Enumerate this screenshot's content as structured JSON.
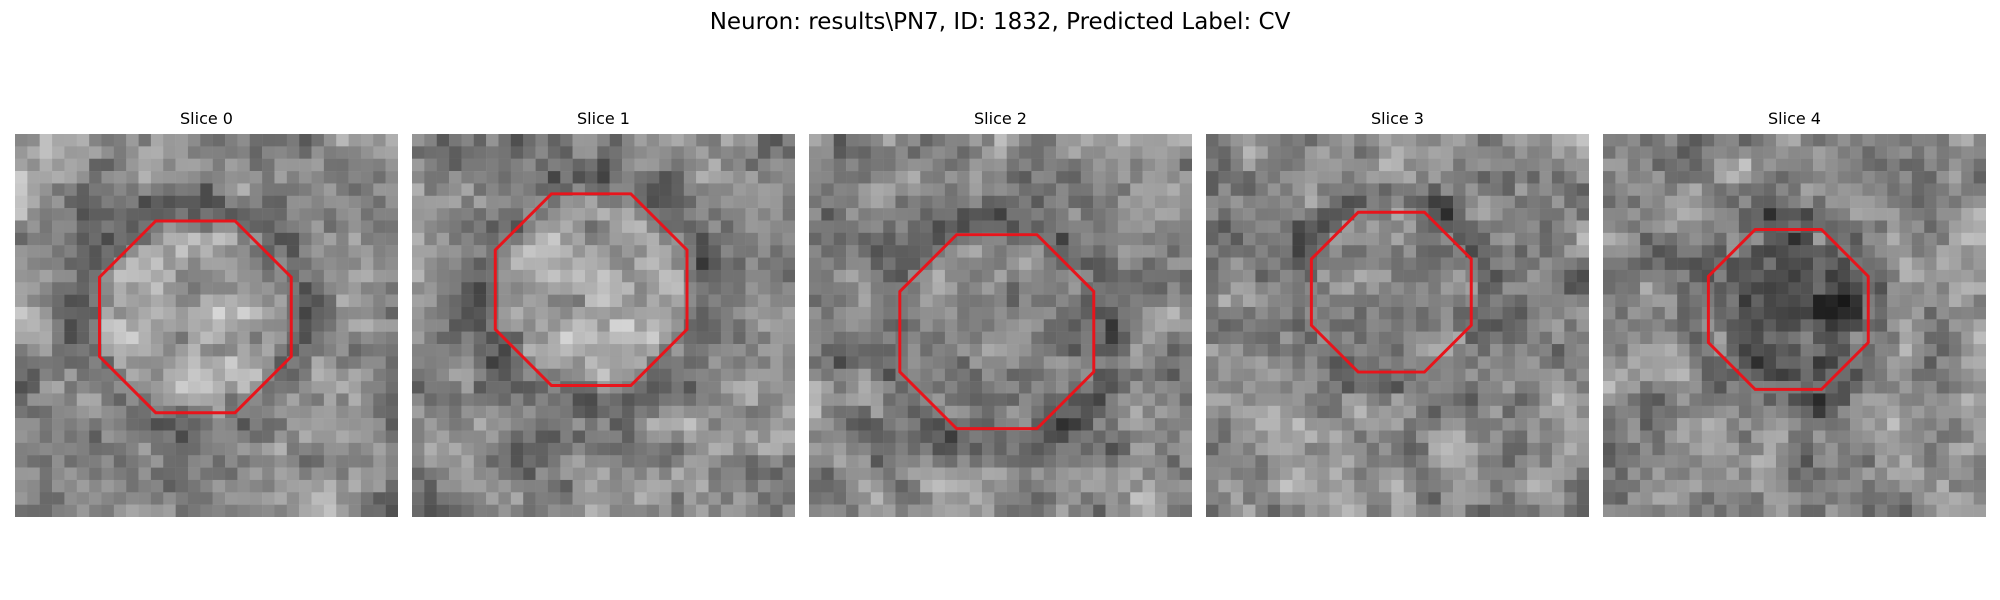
{
  "figure": {
    "title": "Neuron: results\\PN7, ID: 1832, Predicted Label: CV"
  },
  "slices": [
    {
      "label": "Slice 0",
      "seed": 11,
      "center": "bright",
      "outline_color": "#e8141b"
    },
    {
      "label": "Slice 1",
      "seed": 23,
      "center": "bright",
      "outline_color": "#e8141b"
    },
    {
      "label": "Slice 2",
      "seed": 37,
      "center": "mid",
      "outline_color": "#e8141b"
    },
    {
      "label": "Slice 3",
      "seed": 41,
      "center": "mid",
      "outline_color": "#e8141b"
    },
    {
      "label": "Slice 4",
      "seed": 59,
      "center": "dark",
      "outline_color": "#e8141b"
    }
  ]
}
